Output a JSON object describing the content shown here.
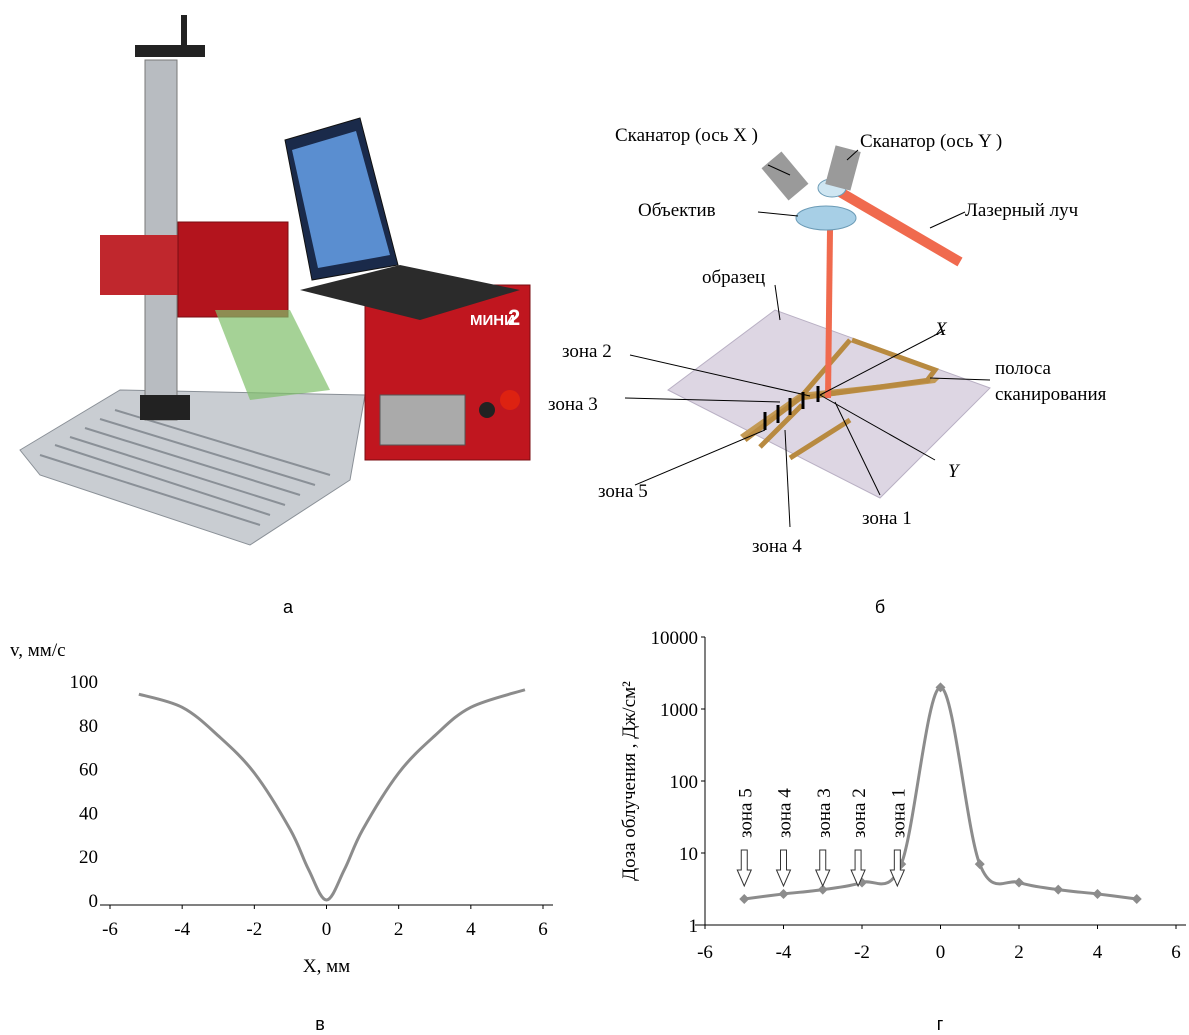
{
  "panels": {
    "a": "а",
    "b": "б",
    "c": "в",
    "d": "г"
  },
  "photo": {
    "brand": "МИНИ",
    "model": "2"
  },
  "diagram": {
    "scanner_x": "Сканатор (ось X )",
    "scanner_y": "Сканатор (ось Y )",
    "lens": "Объектив",
    "beam": "Лазерный луч",
    "sample": "образец",
    "axis_x": "X",
    "axis_y": "Y",
    "stripe": [
      "полоса",
      "сканирования"
    ],
    "zones": [
      "зона 1",
      "зона 2",
      "зона 3",
      "зона 4",
      "зона 5"
    ]
  },
  "chart_data": [
    {
      "type": "line",
      "xlabel": "X, мм",
      "ylabel": "v, мм/с",
      "x": [
        -5.2,
        -4,
        -3,
        -2,
        -1,
        -0.5,
        0,
        0.5,
        1,
        2,
        3,
        4,
        5.5
      ],
      "series": [
        {
          "color": "#8c8c8c",
          "values": [
            94,
            88,
            75,
            58,
            32,
            14,
            0,
            14,
            32,
            58,
            75,
            88,
            96
          ]
        }
      ],
      "xlim": [
        -6,
        6
      ],
      "ylim": [
        0,
        100
      ],
      "xticks": [
        -6,
        -4,
        -2,
        0,
        2,
        4,
        6
      ],
      "yticks": [
        0,
        20,
        40,
        60,
        80,
        100
      ]
    },
    {
      "type": "line",
      "ylabel": "Доза облучения , Дж/см²",
      "log_scale": true,
      "markers": "diamond",
      "x": [
        -5,
        -4,
        -3,
        -2,
        -1,
        0,
        1,
        2,
        3,
        4,
        5
      ],
      "series": [
        {
          "color": "#8c8c8c",
          "values": [
            2.3,
            2.7,
            3.1,
            3.9,
            7,
            2000,
            7,
            3.9,
            3.1,
            2.7,
            2.3
          ]
        }
      ],
      "xlim": [
        -6,
        6
      ],
      "ylim": [
        1,
        10000
      ],
      "xticks": [
        -6,
        -4,
        -2,
        0,
        2,
        4,
        6
      ],
      "yticks": [
        1,
        10,
        100,
        1000,
        10000
      ],
      "annotations": [
        {
          "text": "зона 5",
          "x": -5
        },
        {
          "text": "зона 4",
          "x": -4
        },
        {
          "text": "зона 3",
          "x": -3
        },
        {
          "text": "зона 2",
          "x": -2.1
        },
        {
          "text": "зона 1",
          "x": -1.1
        }
      ]
    }
  ]
}
